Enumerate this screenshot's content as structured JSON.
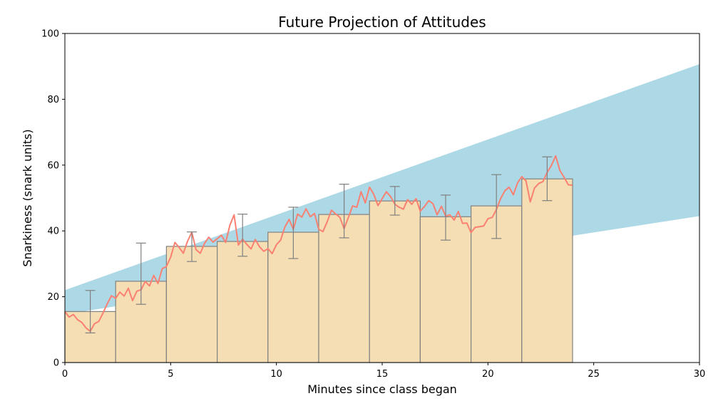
{
  "chart_data": {
    "type": "bar",
    "title": "Future Projection of Attitudes",
    "xlabel": "Minutes since class began",
    "ylabel": "Snarkiness (snark units)",
    "xlim": [
      0,
      30
    ],
    "ylim": [
      0,
      100
    ],
    "xticks": [
      0,
      5,
      10,
      15,
      20,
      25,
      30
    ],
    "yticks": [
      0,
      20,
      40,
      60,
      80,
      100
    ],
    "grid": false,
    "colors": {
      "bars": "#f5deb3",
      "bar_edge": "#808080",
      "error_bars": "#808080",
      "projection_band": "#add8e6",
      "line": "#fa8072"
    },
    "bars": {
      "bin_edges": [
        0,
        2.4,
        4.8,
        7.2,
        9.6,
        12.0,
        14.4,
        16.8,
        19.2,
        21.6,
        24.0
      ],
      "values": [
        15.5,
        24.7,
        35.3,
        36.8,
        39.6,
        45.0,
        49.1,
        44.3,
        47.6,
        55.8
      ],
      "err_x": [
        1.2,
        3.6,
        6.0,
        8.4,
        10.8,
        13.2,
        15.6,
        18.0,
        20.4,
        22.8
      ],
      "err_low": [
        9.0,
        17.7,
        30.7,
        32.3,
        31.6,
        37.9,
        44.8,
        37.2,
        37.7,
        49.2
      ],
      "err_high": [
        21.9,
        36.3,
        39.7,
        45.1,
        47.2,
        54.2,
        53.5,
        50.9,
        57.1,
        62.5
      ]
    },
    "projection_band": {
      "x": [
        0,
        30
      ],
      "lower": [
        14.7,
        44.5
      ],
      "upper": [
        22.0,
        90.7
      ]
    },
    "line": {
      "x": [
        0,
        0.2,
        0.4,
        0.6,
        0.8,
        1.0,
        1.2,
        1.4,
        1.6,
        1.8,
        2.0,
        2.2,
        2.4,
        2.6,
        2.8,
        3.0,
        3.2,
        3.4,
        3.6,
        3.8,
        4.0,
        4.2,
        4.4,
        4.6,
        4.8,
        5.0,
        5.2,
        5.4,
        5.6,
        5.8,
        6.0,
        6.2,
        6.4,
        6.6,
        6.8,
        7.0,
        7.2,
        7.4,
        7.6,
        7.8,
        8.0,
        8.2,
        8.4,
        8.6,
        8.8,
        9.0,
        9.2,
        9.4,
        9.6,
        9.8,
        10.0,
        10.2,
        10.4,
        10.6,
        10.8,
        11.0,
        11.2,
        11.4,
        11.6,
        11.8,
        12.0,
        12.2,
        12.4,
        12.6,
        12.8,
        13.0,
        13.2,
        13.4,
        13.6,
        13.8,
        14.0,
        14.2,
        14.4,
        14.6,
        14.8,
        15.0,
        15.2,
        15.4,
        15.6,
        15.8,
        16.0,
        16.2,
        16.4,
        16.6,
        16.8,
        17.0,
        17.2,
        17.4,
        17.6,
        17.8,
        18.0,
        18.2,
        18.4,
        18.6,
        18.8,
        19.0,
        19.2,
        19.4,
        19.6,
        19.8,
        20.0,
        20.2,
        20.4,
        20.6,
        20.8,
        21.0,
        21.2,
        21.4,
        21.6,
        21.8,
        22.0,
        22.2,
        22.4,
        22.6,
        22.8,
        23.0,
        23.2,
        23.4,
        23.6,
        23.8,
        24.0
      ],
      "y": [
        15.5,
        13.8,
        14.6,
        13.0,
        12.2,
        10.5,
        9.5,
        11.8,
        12.5,
        15.0,
        17.8,
        20.3,
        19.5,
        21.4,
        20.2,
        22.6,
        18.8,
        21.7,
        22.1,
        24.6,
        23.3,
        26.5,
        24.0,
        28.5,
        29.2,
        32.0,
        36.5,
        35.0,
        33.2,
        36.9,
        39.6,
        34.3,
        33.2,
        36.2,
        38.1,
        36.6,
        37.6,
        38.7,
        36.5,
        41.7,
        44.9,
        35.7,
        37.5,
        35.9,
        34.5,
        37.4,
        35.2,
        33.8,
        34.6,
        33.1,
        35.8,
        37.2,
        41.2,
        43.5,
        40.5,
        45.1,
        44.2,
        46.7,
        44.3,
        45.3,
        40.5,
        39.8,
        42.8,
        46.3,
        45.2,
        44.1,
        40.7,
        44.0,
        47.6,
        47.2,
        51.9,
        48.5,
        53.3,
        51.2,
        47.7,
        49.8,
        51.9,
        50.4,
        48.1,
        47.2,
        46.6,
        49.5,
        48.1,
        49.8,
        46.0,
        47.4,
        49.2,
        48.3,
        44.9,
        47.5,
        44.5,
        44.9,
        43.3,
        45.9,
        42.3,
        42.4,
        39.5,
        41.1,
        41.3,
        41.5,
        43.7,
        44.1,
        46.5,
        49.8,
        52.2,
        53.3,
        51.0,
        54.6,
        56.5,
        55.2,
        48.8,
        53.0,
        54.4,
        55.0,
        57.8,
        59.9,
        62.8,
        58.4,
        56.3,
        54.0,
        53.9
      ]
    }
  }
}
